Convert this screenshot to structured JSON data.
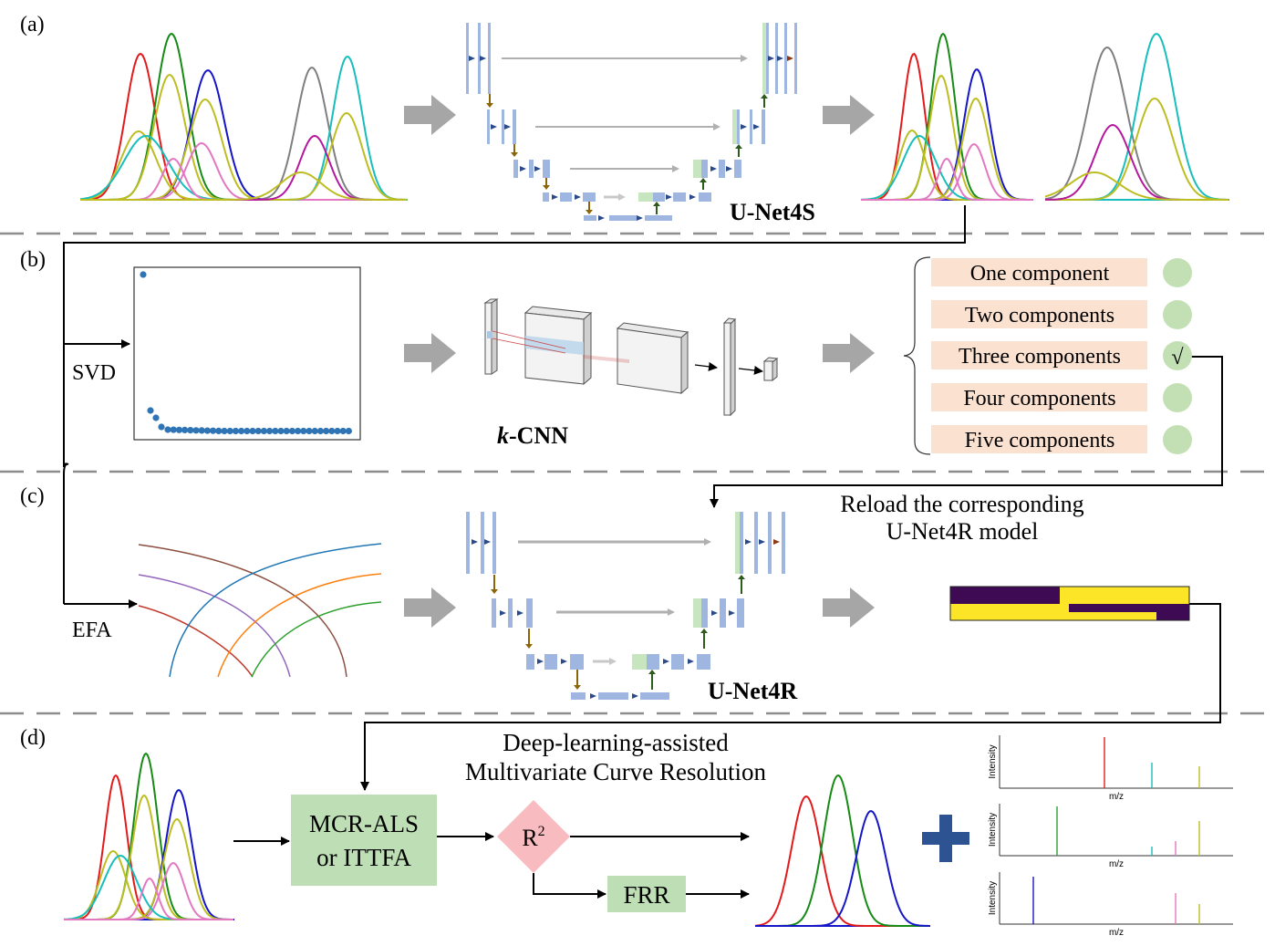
{
  "panels": {
    "a": {
      "label": "(a)",
      "model_name": "U-Net4S"
    },
    "b": {
      "label": "(b)",
      "svd_label": "SVD",
      "cnn_name_italic": "k",
      "cnn_name_rest": "-CNN",
      "options": [
        "One component",
        "Two components",
        "Three components",
        "Four components",
        "Five components"
      ],
      "selected_index": 2,
      "check_mark": "√"
    },
    "c": {
      "label": "(c)",
      "efa_label": "EFA",
      "reload_line1": "Reload the corresponding",
      "reload_line2": "U-Net4R model",
      "model_name": "U-Net4R"
    },
    "d": {
      "label": "(d)",
      "title_line1": "Deep-learning-assisted",
      "title_line2": "Multivariate Curve Resolution",
      "mcr_line1": "MCR-ALS",
      "mcr_line2": "or ITTFA",
      "r2_base": "R",
      "r2_sup": "2",
      "frr_label": "FRR",
      "ms_ylabel": "Intensity",
      "ms_xlabel": "m/z"
    }
  },
  "colors": {
    "blue_block": "#9fb6e0",
    "green_block": "#c7e6c0",
    "option_fill": "#fbe1d0",
    "option_circle": "#c3e0b4",
    "mcr_fill": "#bedfb5",
    "r2_fill": "#f8bcc0",
    "plus": "#2e5393",
    "gray_arrow": "#a6a6a6",
    "heat_dark": "#3e0a54",
    "heat_yellow": "#fbe526"
  }
}
